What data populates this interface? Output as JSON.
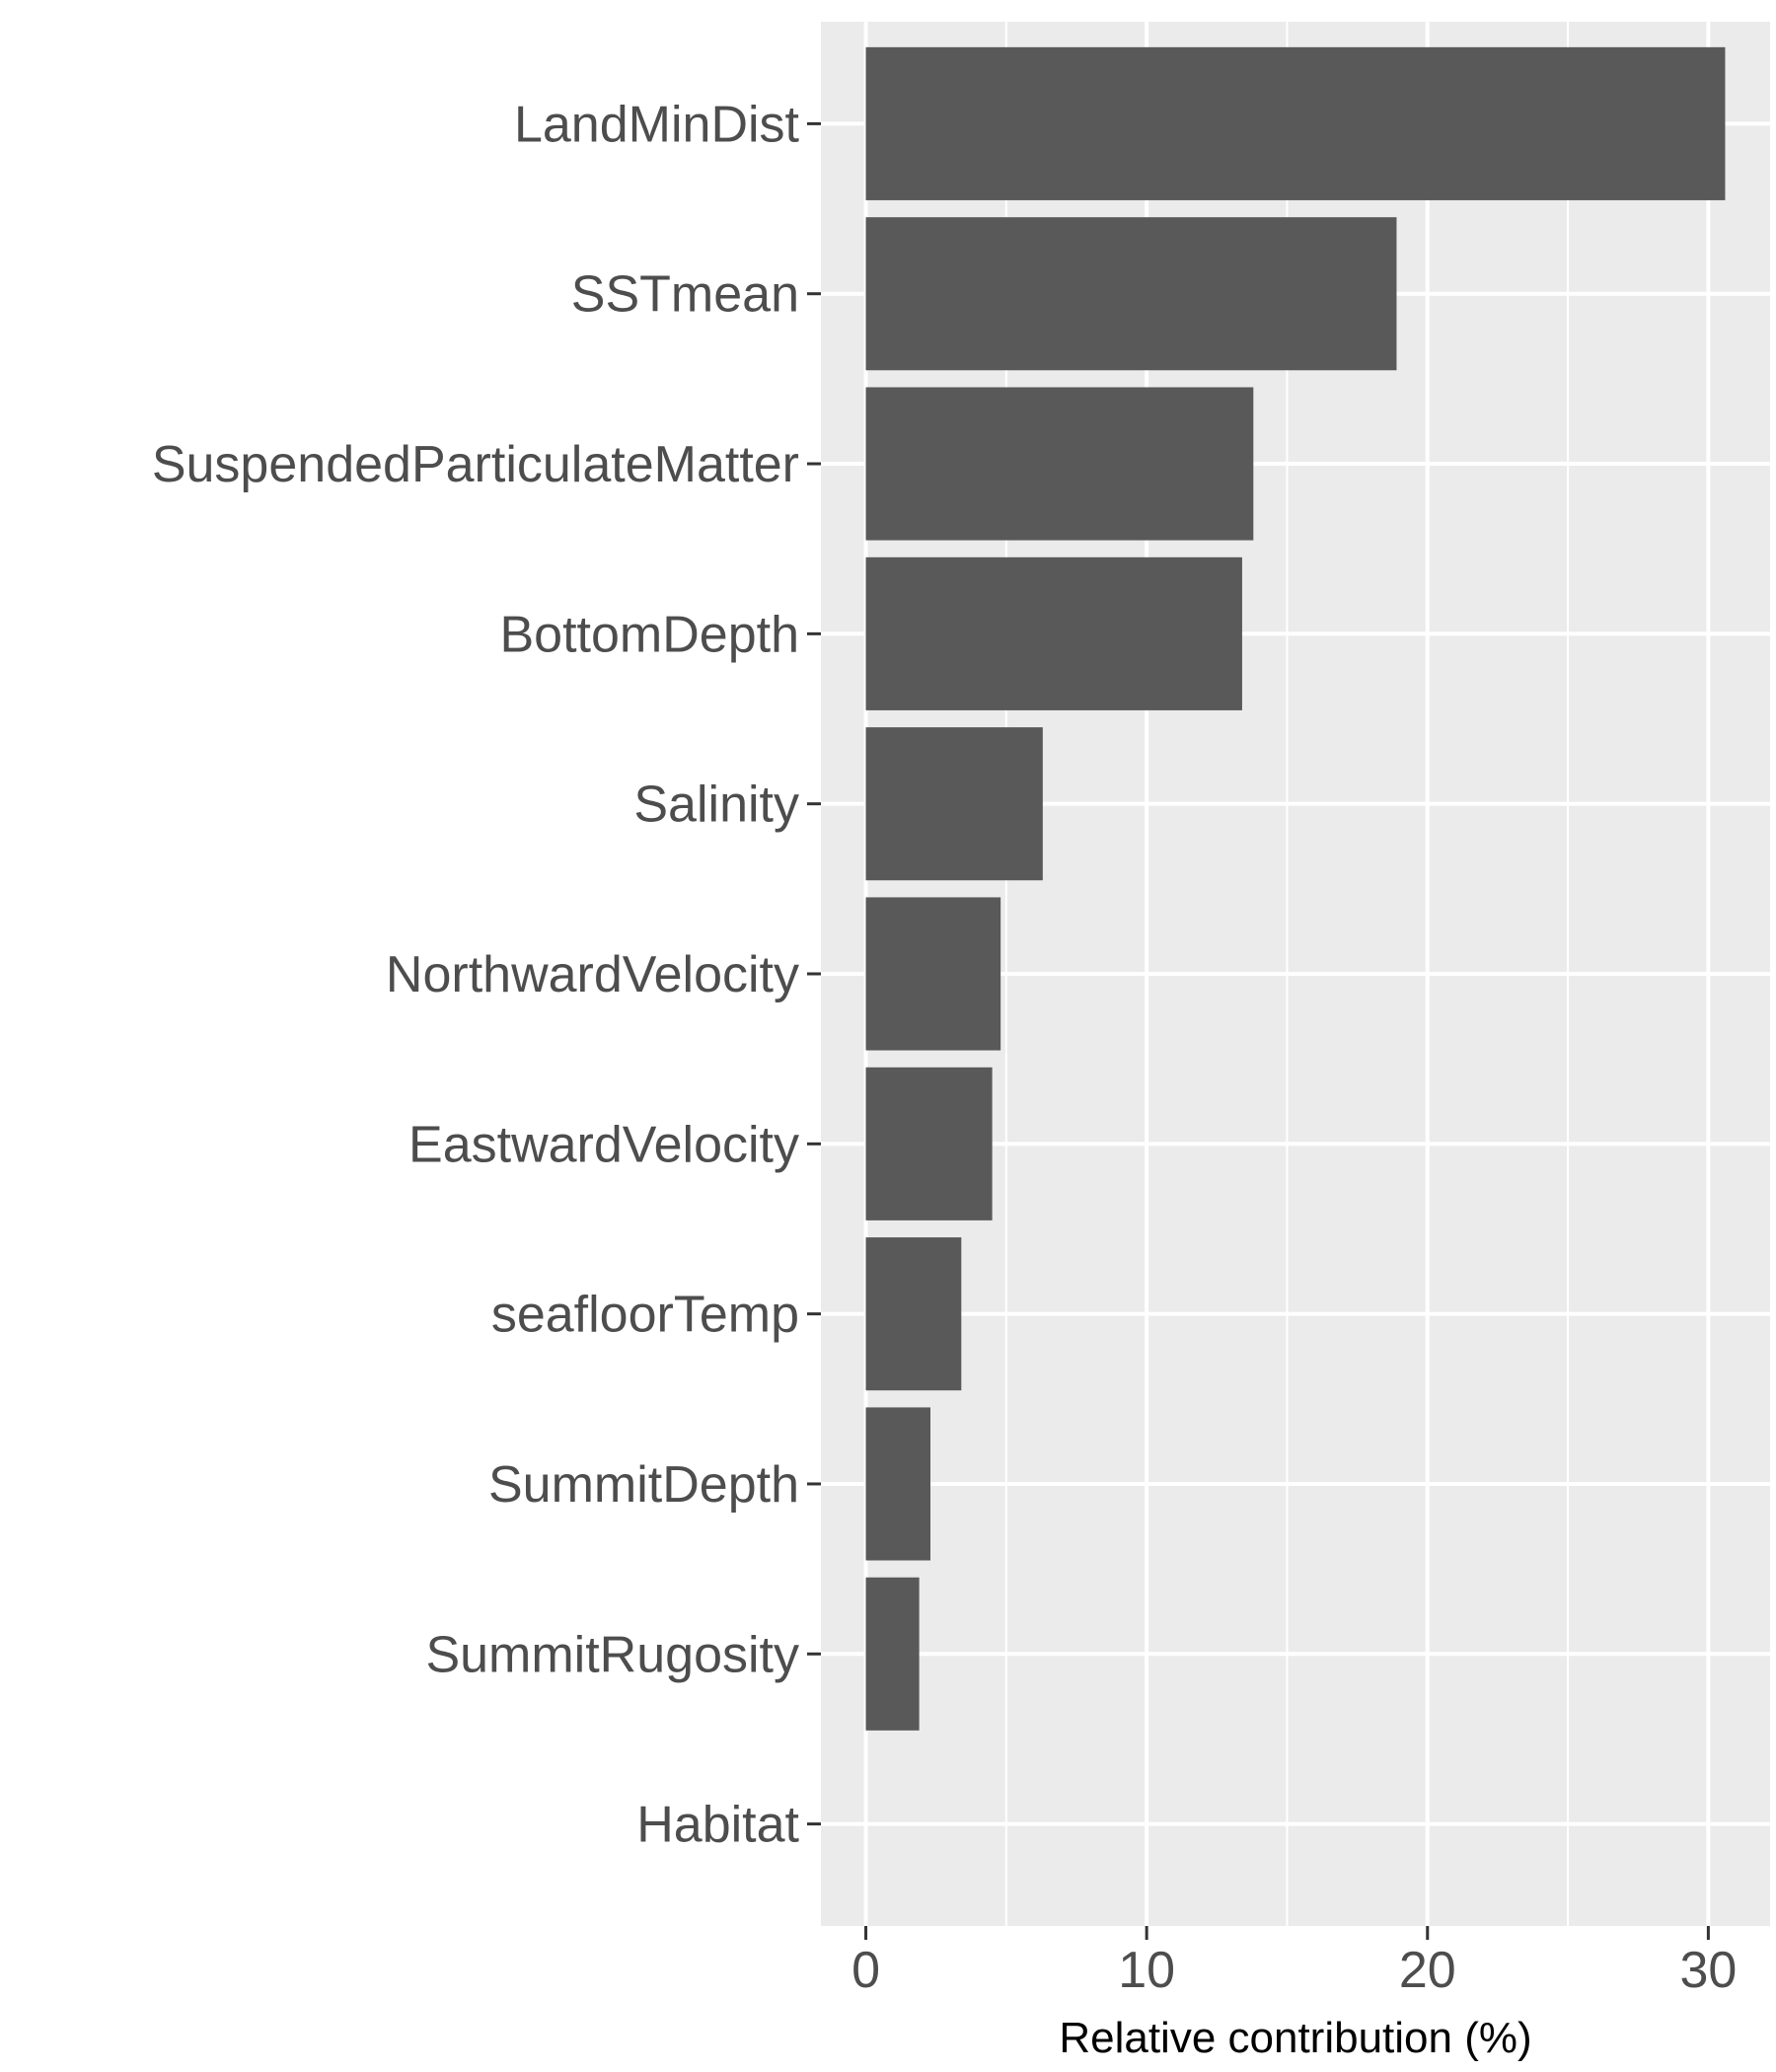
{
  "chart_data": {
    "type": "bar",
    "orientation": "horizontal",
    "categories": [
      "LandMinDist",
      "SSTmean",
      "SuspendedParticulateMatter",
      "BottomDepth",
      "Salinity",
      "NorthwardVelocity",
      "EastwardVelocity",
      "seafloorTemp",
      "SummitDepth",
      "SummitRugosity",
      "Habitat"
    ],
    "values": [
      30.6,
      18.9,
      13.8,
      13.4,
      6.3,
      4.8,
      4.5,
      3.4,
      2.3,
      1.9,
      0
    ],
    "xlabel": "Relative contribution (%)",
    "ylabel": "",
    "xlim": [
      -1.6,
      32.2
    ],
    "x_ticks": [
      0,
      10,
      20,
      30
    ],
    "x_tick_labels": [
      "0",
      "10",
      "20",
      "30"
    ],
    "grid": true,
    "colors": {
      "bar": "#595959",
      "panel": "#ebebeb",
      "grid": "#ffffff"
    }
  }
}
